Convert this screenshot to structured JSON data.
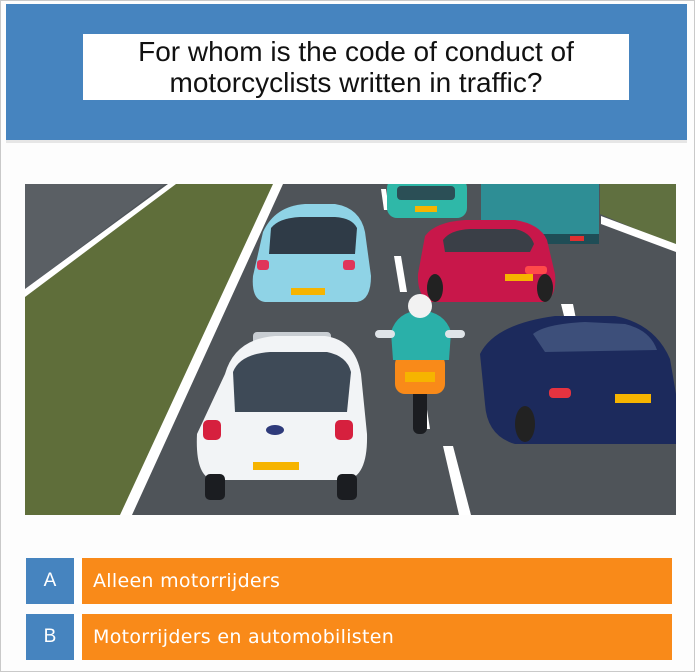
{
  "question": {
    "line1": "For whom is the code of conduct of",
    "line2": "motorcyclists written in traffic?"
  },
  "answers": [
    {
      "letter": "A",
      "label": "Alleen motorrijders"
    },
    {
      "letter": "B",
      "label": "Motorrijders en automobilisten"
    }
  ],
  "colors": {
    "header": "#4684bf",
    "answer_button": "#f98a19",
    "answer_letter_bg": "#4684bf"
  },
  "illustration": {
    "depicts": [
      "green-car-icon",
      "truck-icon",
      "red-car-icon",
      "blue-car-icon",
      "motorcycle-icon",
      "white-car-icon",
      "navy-car-icon"
    ]
  }
}
